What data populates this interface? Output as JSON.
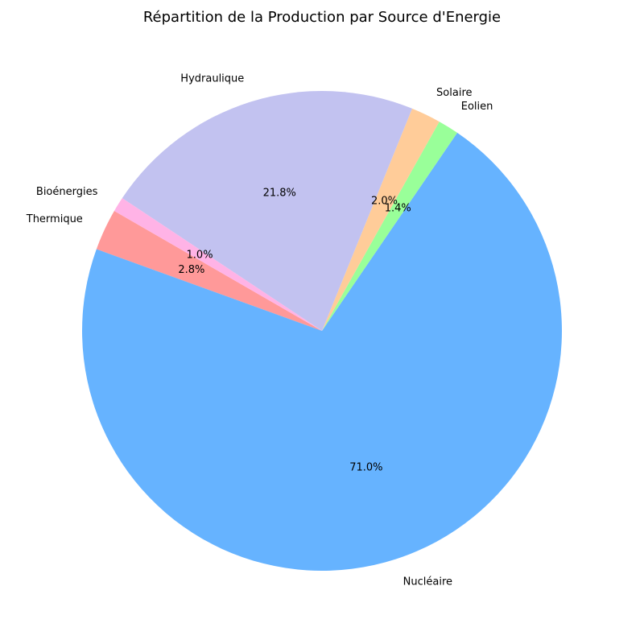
{
  "chart_data": {
    "type": "pie",
    "title": "Répartition de la Production par Source d'Energie",
    "start_angle_deg": 150,
    "direction": "counterclockwise",
    "slices": [
      {
        "label": "Thermique",
        "value": 2.8,
        "pct_label": "2.8%",
        "color": "#ff9999"
      },
      {
        "label": "Nucléaire",
        "value": 71.0,
        "pct_label": "71.0%",
        "color": "#66b3ff"
      },
      {
        "label": "Eolien",
        "value": 1.4,
        "pct_label": "1.4%",
        "color": "#99ff99"
      },
      {
        "label": "Solaire",
        "value": 2.0,
        "pct_label": "2.0%",
        "color": "#ffcc99"
      },
      {
        "label": "Hydraulique",
        "value": 21.8,
        "pct_label": "21.8%",
        "color": "#c2c2f0"
      },
      {
        "label": "Bioénergies",
        "value": 1.0,
        "pct_label": "1.0%",
        "color": "#ffb3e6"
      }
    ]
  }
}
